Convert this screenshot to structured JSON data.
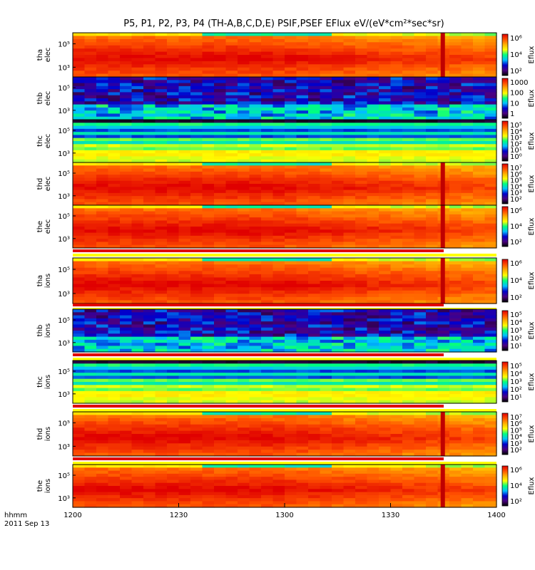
{
  "title": "P5, P1, P2, P3, P4  (TH-A,B,C,D,E) PSIF,PSEF EFlux eV/(eV*cm²*sec*sr)",
  "time_axis_label": "hhmm",
  "date_label": "2011 Sep 13",
  "chart_data": {
    "type": "heatmap",
    "x": {
      "ticks": [
        "1200",
        "1230",
        "1300",
        "1330",
        "1400"
      ],
      "range_hhmm": [
        "1200",
        "1400"
      ]
    },
    "colorbar_label": "Eflux",
    "colormap": [
      "#000000",
      "#4b0082",
      "#0000cd",
      "#00bfff",
      "#00ff80",
      "#ffff00",
      "#ffb000",
      "#ff5000",
      "#e00000"
    ],
    "panels": [
      {
        "probe": "tha",
        "species": "elec",
        "yticks": [
          "10⁵",
          "10³"
        ],
        "cbar_ticks": [
          "10⁶",
          "10⁴",
          "10²"
        ],
        "eclipse_band": false
      },
      {
        "probe": "thb",
        "species": "elec",
        "yticks": [
          "10⁵",
          "10³"
        ],
        "cbar_ticks": [
          "1000",
          "100",
          "10",
          "1"
        ],
        "eclipse_band": false
      },
      {
        "probe": "thc",
        "species": "elec",
        "yticks": [
          "10⁵",
          "10³"
        ],
        "cbar_ticks": [
          "10⁵",
          "10⁴",
          "10³",
          "10²",
          "10¹",
          "10⁰"
        ],
        "eclipse_band": false
      },
      {
        "probe": "thd",
        "species": "elec",
        "yticks": [
          "10⁵",
          "10³"
        ],
        "cbar_ticks": [
          "10⁷",
          "10⁶",
          "10⁵",
          "10⁴",
          "10³",
          "10²"
        ],
        "eclipse_band": false
      },
      {
        "probe": "the",
        "species": "elec",
        "yticks": [
          "10⁵",
          "10³"
        ],
        "cbar_ticks": [
          "10⁶",
          "10⁴",
          "10²"
        ],
        "eclipse_band": true
      },
      {
        "probe": "tha",
        "species": "ions",
        "yticks": [
          "10⁵",
          "10³"
        ],
        "cbar_ticks": [
          "10⁶",
          "10⁴",
          "10²"
        ],
        "eclipse_band": true
      },
      {
        "probe": "thb",
        "species": "ions",
        "yticks": [
          "10⁵",
          "10³"
        ],
        "cbar_ticks": [
          "10⁵",
          "10⁴",
          "10³",
          "10²",
          "10¹"
        ],
        "eclipse_band": true
      },
      {
        "probe": "thc",
        "species": "ions",
        "yticks": [
          "10⁵",
          "10³"
        ],
        "cbar_ticks": [
          "10⁵",
          "10⁴",
          "10³",
          "10²",
          "10¹"
        ],
        "eclipse_band": true
      },
      {
        "probe": "thd",
        "species": "ions",
        "yticks": [
          "10⁵",
          "10³"
        ],
        "cbar_ticks": [
          "10⁷",
          "10⁶",
          "10⁵",
          "10⁴",
          "10³",
          "10²"
        ],
        "eclipse_band": true
      },
      {
        "probe": "the",
        "species": "ions",
        "yticks": [
          "10⁵",
          "10³"
        ],
        "cbar_ticks": [
          "10⁶",
          "10⁴",
          "10²"
        ],
        "eclipse_band": false
      }
    ]
  }
}
